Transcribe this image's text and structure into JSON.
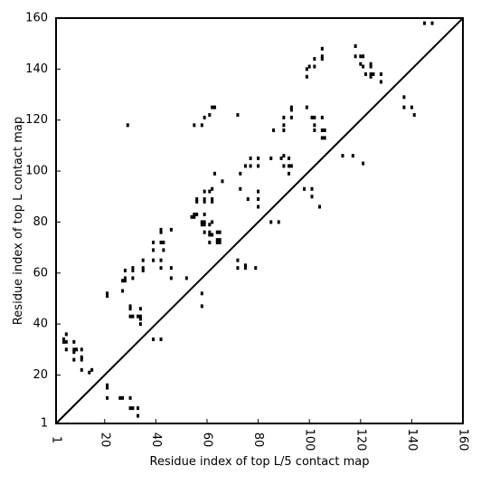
{
  "chart_data": {
    "type": "scatter",
    "title": "",
    "xlabel": "Residue index of top L/5 contact map",
    "ylabel": "Residue index of top L contact map",
    "xlim": [
      1,
      160
    ],
    "ylim": [
      1,
      160
    ],
    "x_ticks": [
      1,
      20,
      40,
      60,
      80,
      100,
      120,
      140,
      160
    ],
    "y_ticks": [
      1,
      20,
      40,
      60,
      80,
      100,
      120,
      140,
      160
    ],
    "x_tick_labels": [
      "1",
      "20",
      "40",
      "60",
      "80",
      "100",
      "120",
      "140",
      "160"
    ],
    "y_tick_labels": [
      "1",
      "20",
      "40",
      "60",
      "80",
      "100",
      "120",
      "140",
      "160"
    ],
    "diagonal_line": [
      [
        1,
        1
      ],
      [
        160,
        160
      ]
    ],
    "grid": false,
    "marker": "small black squares",
    "color": "#000000",
    "series": [
      {
        "points": [
          [
            4,
            33
          ],
          [
            4,
            34
          ],
          [
            5,
            33
          ],
          [
            5,
            36
          ],
          [
            5,
            30
          ],
          [
            8,
            29
          ],
          [
            8,
            30
          ],
          [
            9,
            30
          ],
          [
            8,
            33
          ],
          [
            8,
            26
          ],
          [
            11,
            22
          ],
          [
            11,
            26
          ],
          [
            11,
            27
          ],
          [
            11,
            30
          ],
          [
            14,
            21
          ],
          [
            15,
            22
          ],
          [
            21,
            11
          ],
          [
            21,
            15
          ],
          [
            21,
            16
          ],
          [
            21,
            51
          ],
          [
            21,
            52
          ],
          [
            26,
            11
          ],
          [
            27,
            11
          ],
          [
            27,
            53
          ],
          [
            27,
            57
          ],
          [
            28,
            57
          ],
          [
            28,
            58
          ],
          [
            28,
            61
          ],
          [
            29,
            118
          ],
          [
            30,
            11
          ],
          [
            30,
            7
          ],
          [
            31,
            7
          ],
          [
            30,
            43
          ],
          [
            31,
            43
          ],
          [
            30,
            46
          ],
          [
            30,
            47
          ],
          [
            31,
            58
          ],
          [
            31,
            61
          ],
          [
            31,
            62
          ],
          [
            33,
            4
          ],
          [
            33,
            7
          ],
          [
            33,
            43
          ],
          [
            34,
            40
          ],
          [
            34,
            42
          ],
          [
            34,
            43
          ],
          [
            34,
            46
          ],
          [
            35,
            61
          ],
          [
            35,
            62
          ],
          [
            35,
            65
          ],
          [
            39,
            34
          ],
          [
            39,
            65
          ],
          [
            39,
            69
          ],
          [
            39,
            72
          ],
          [
            42,
            34
          ],
          [
            42,
            62
          ],
          [
            42,
            65
          ],
          [
            42,
            72
          ],
          [
            42,
            76
          ],
          [
            42,
            77
          ],
          [
            43,
            69
          ],
          [
            43,
            72
          ],
          [
            46,
            58
          ],
          [
            46,
            62
          ],
          [
            46,
            77
          ],
          [
            52,
            58
          ],
          [
            54,
            82
          ],
          [
            55,
            82
          ],
          [
            55,
            83
          ],
          [
            55,
            118
          ],
          [
            56,
            83
          ],
          [
            56,
            88
          ],
          [
            56,
            89
          ],
          [
            58,
            47
          ],
          [
            58,
            52
          ],
          [
            58,
            79
          ],
          [
            58,
            80
          ],
          [
            58,
            118
          ],
          [
            59,
            76
          ],
          [
            59,
            79
          ],
          [
            59,
            80
          ],
          [
            59,
            83
          ],
          [
            59,
            88
          ],
          [
            59,
            89
          ],
          [
            59,
            92
          ],
          [
            59,
            121
          ],
          [
            61,
            72
          ],
          [
            61,
            75
          ],
          [
            61,
            76
          ],
          [
            61,
            79
          ],
          [
            61,
            92
          ],
          [
            61,
            122
          ],
          [
            62,
            75
          ],
          [
            62,
            80
          ],
          [
            62,
            88
          ],
          [
            62,
            89
          ],
          [
            62,
            93
          ],
          [
            62,
            125
          ],
          [
            63,
            99
          ],
          [
            63,
            125
          ],
          [
            64,
            72
          ],
          [
            64,
            73
          ],
          [
            64,
            76
          ],
          [
            65,
            72
          ],
          [
            65,
            73
          ],
          [
            65,
            76
          ],
          [
            66,
            96
          ],
          [
            72,
            62
          ],
          [
            72,
            65
          ],
          [
            72,
            122
          ],
          [
            73,
            93
          ],
          [
            73,
            99
          ],
          [
            75,
            62
          ],
          [
            75,
            63
          ],
          [
            75,
            102
          ],
          [
            76,
            89
          ],
          [
            77,
            102
          ],
          [
            77,
            105
          ],
          [
            79,
            62
          ],
          [
            80,
            86
          ],
          [
            80,
            89
          ],
          [
            80,
            92
          ],
          [
            80,
            102
          ],
          [
            80,
            105
          ],
          [
            85,
            80
          ],
          [
            85,
            105
          ],
          [
            86,
            116
          ],
          [
            88,
            80
          ],
          [
            89,
            105
          ],
          [
            90,
            102
          ],
          [
            90,
            106
          ],
          [
            90,
            116
          ],
          [
            90,
            118
          ],
          [
            90,
            121
          ],
          [
            92,
            99
          ],
          [
            92,
            102
          ],
          [
            92,
            105
          ],
          [
            93,
            102
          ],
          [
            93,
            121
          ],
          [
            93,
            124
          ],
          [
            93,
            125
          ],
          [
            98,
            93
          ],
          [
            99,
            125
          ],
          [
            99,
            137
          ],
          [
            99,
            140
          ],
          [
            100,
            141
          ],
          [
            101,
            90
          ],
          [
            101,
            93
          ],
          [
            101,
            121
          ],
          [
            102,
            116
          ],
          [
            102,
            118
          ],
          [
            102,
            121
          ],
          [
            102,
            141
          ],
          [
            102,
            144
          ],
          [
            104,
            86
          ],
          [
            105,
            113
          ],
          [
            105,
            116
          ],
          [
            105,
            121
          ],
          [
            105,
            144
          ],
          [
            105,
            145
          ],
          [
            105,
            148
          ],
          [
            106,
            113
          ],
          [
            106,
            116
          ],
          [
            113,
            106
          ],
          [
            117,
            106
          ],
          [
            118,
            145
          ],
          [
            118,
            149
          ],
          [
            120,
            142
          ],
          [
            120,
            145
          ],
          [
            121,
            103
          ],
          [
            121,
            141
          ],
          [
            121,
            145
          ],
          [
            122,
            138
          ],
          [
            124,
            137
          ],
          [
            124,
            138
          ],
          [
            124,
            141
          ],
          [
            124,
            142
          ],
          [
            125,
            138
          ],
          [
            128,
            135
          ],
          [
            128,
            138
          ],
          [
            137,
            125
          ],
          [
            137,
            129
          ],
          [
            140,
            125
          ],
          [
            141,
            122
          ],
          [
            145,
            158
          ],
          [
            148,
            158
          ]
        ]
      }
    ]
  }
}
